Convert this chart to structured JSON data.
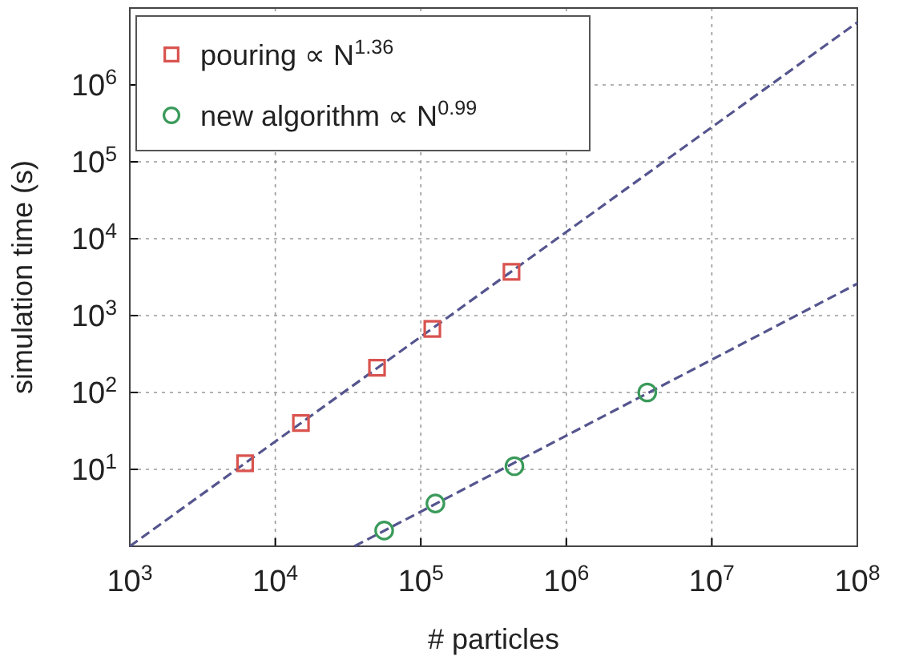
{
  "chart_data": {
    "type": "scatter",
    "xlabel": "# particles",
    "ylabel": "simulation time (s)",
    "log": "xy",
    "grid": true,
    "legend": "top left",
    "xlim": [
      1000,
      100000000
    ],
    "ylim": [
      1,
      10000000
    ],
    "xticks": [
      {
        "value": 1000,
        "label": "10$^{3}$"
      },
      {
        "value": 10000,
        "label": "10$^{4}$"
      },
      {
        "value": 100000,
        "label": "10$^{5}$"
      },
      {
        "value": 1000000,
        "label": "10$^{6}$"
      },
      {
        "value": 10000000,
        "label": "10$^{7}$"
      },
      {
        "value": 100000000,
        "label": "10$^{8}$"
      }
    ],
    "yticks": [
      {
        "value": 10,
        "label": "10$^{1}$"
      },
      {
        "value": 100,
        "label": "10$^{2}$"
      },
      {
        "value": 1000,
        "label": "10$^{3}$"
      },
      {
        "value": 10000,
        "label": "10$^{4}$"
      },
      {
        "value": 100000,
        "label": "10$^{5}$"
      },
      {
        "value": 1000000,
        "label": "10$^{6}$"
      }
    ],
    "series": [
      {
        "type": "line",
        "color": "#55558f",
        "line_style": "dashed",
        "marker": "none",
        "x": [
          1000,
          100000000
        ],
        "values": [
          1,
          6500000
        ]
      },
      {
        "type": "line",
        "color": "#55558f",
        "line_style": "dashed",
        "marker": "none",
        "x": [
          35000,
          100000000
        ],
        "values": [
          1,
          2600
        ]
      },
      {
        "name": "pouring ∝ N$^{1.36}$",
        "color": "#d9534f",
        "marker": "square",
        "x": [
          6200,
          15000,
          50000,
          120000,
          420000
        ],
        "values": [
          12,
          40,
          210,
          670,
          3700
        ]
      },
      {
        "name": "new algorithm ∝ N$^{0.99}$",
        "color": "#3a9a5a",
        "marker": "circle",
        "x": [
          56000,
          126000,
          440000,
          3600000
        ],
        "values": [
          1.6,
          3.6,
          11,
          100
        ]
      }
    ]
  }
}
